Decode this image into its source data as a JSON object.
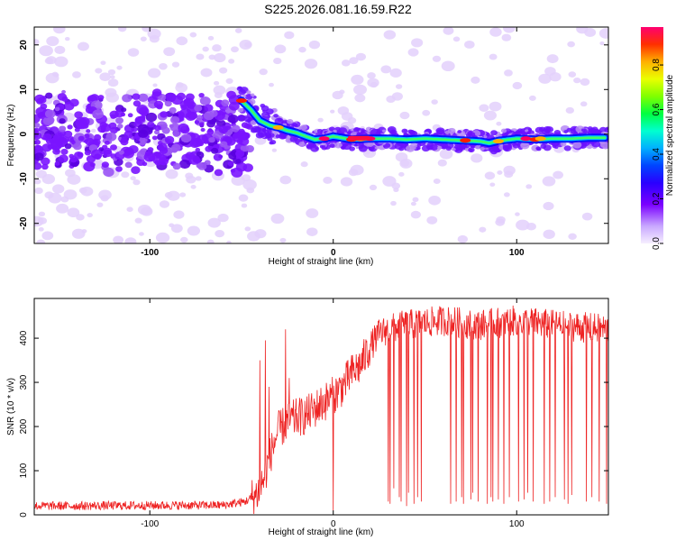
{
  "title": "S225.2026.081.16.59.R22",
  "chart_data": [
    {
      "type": "heatmap",
      "xlabel": "Height of straight line (km)",
      "ylabel": "Frequency (Hz)",
      "xlim": [
        -163,
        150
      ],
      "ylim": [
        -24.5,
        24
      ],
      "xticks": [
        -100,
        0,
        100
      ],
      "yticks": [
        -20,
        -10,
        0,
        10,
        20
      ],
      "colorbar": {
        "label": "Normalized spectral amplitude",
        "range": [
          0,
          0.97
        ],
        "ticks": [
          0.0,
          0.2,
          0.4,
          0.6,
          0.8
        ],
        "colors": [
          "#e8d8fa",
          "#7a00ff",
          "#0000ff",
          "#00ccff",
          "#00ff66",
          "#b0ff00",
          "#ffff00",
          "#ff8800",
          "#ff0000",
          "#ff00a0"
        ]
      },
      "ridge": {
        "x": [
          -50,
          -45,
          -40,
          -35,
          -30,
          -25,
          -20,
          -15,
          -10,
          -5,
          0,
          10,
          20,
          30,
          40,
          50,
          60,
          70,
          80,
          85,
          90,
          100,
          110,
          120,
          130,
          140,
          148
        ],
        "y": [
          7.5,
          5.5,
          3,
          2,
          1.5,
          0.8,
          0.3,
          -0.5,
          -1.2,
          -1,
          -0.5,
          -1.2,
          -1.0,
          -1.0,
          -1.2,
          -1.0,
          -1.2,
          -1.4,
          -1.6,
          -2.0,
          -1.5,
          -1.0,
          -1.2,
          -1.0,
          -1.0,
          -0.8,
          -0.8
        ]
      }
    },
    {
      "type": "line",
      "xlabel": "Height of straight line (km)",
      "ylabel": "SNR (10 * v/v)",
      "xlim": [
        -163,
        150
      ],
      "ylim": [
        0,
        490
      ],
      "xticks": [
        -100,
        0,
        100
      ],
      "yticks": [
        0,
        100,
        200,
        300,
        400
      ],
      "color": "#ee2222",
      "profile": {
        "x": [
          -163,
          -60,
          -48,
          -42,
          -38,
          -34,
          -30,
          -25,
          -20,
          -15,
          -10,
          -5,
          0,
          5,
          10,
          15,
          20,
          25,
          30,
          40,
          50,
          60,
          80,
          100,
          120,
          150
        ],
        "y": [
          20,
          22,
          30,
          45,
          80,
          140,
          190,
          210,
          220,
          225,
          240,
          255,
          270,
          290,
          320,
          340,
          380,
          410,
          420,
          430,
          435,
          440,
          430,
          440,
          430,
          420
        ]
      },
      "spikes": {
        "up": [
          -40,
          -37,
          -35,
          -26,
          -24
        ],
        "up_values": [
          350,
          395,
          290,
          420,
          310
        ],
        "down": [
          0,
          30,
          31,
          33,
          36,
          37,
          40,
          41,
          44,
          46,
          48,
          64,
          67,
          70,
          71,
          75,
          76,
          79,
          84,
          86,
          87,
          90,
          93,
          96,
          101,
          104,
          106,
          109,
          115,
          118,
          121,
          126,
          128,
          130,
          138,
          141,
          145,
          149
        ],
        "down_values": [
          10,
          30,
          25,
          60,
          40,
          30,
          20,
          50,
          25,
          40,
          30,
          25,
          30,
          40,
          25,
          35,
          50,
          30,
          25,
          40,
          30,
          35,
          25,
          40,
          30,
          35,
          50,
          30,
          25,
          30,
          40,
          35,
          25,
          45,
          30,
          40,
          30,
          25
        ]
      }
    }
  ]
}
